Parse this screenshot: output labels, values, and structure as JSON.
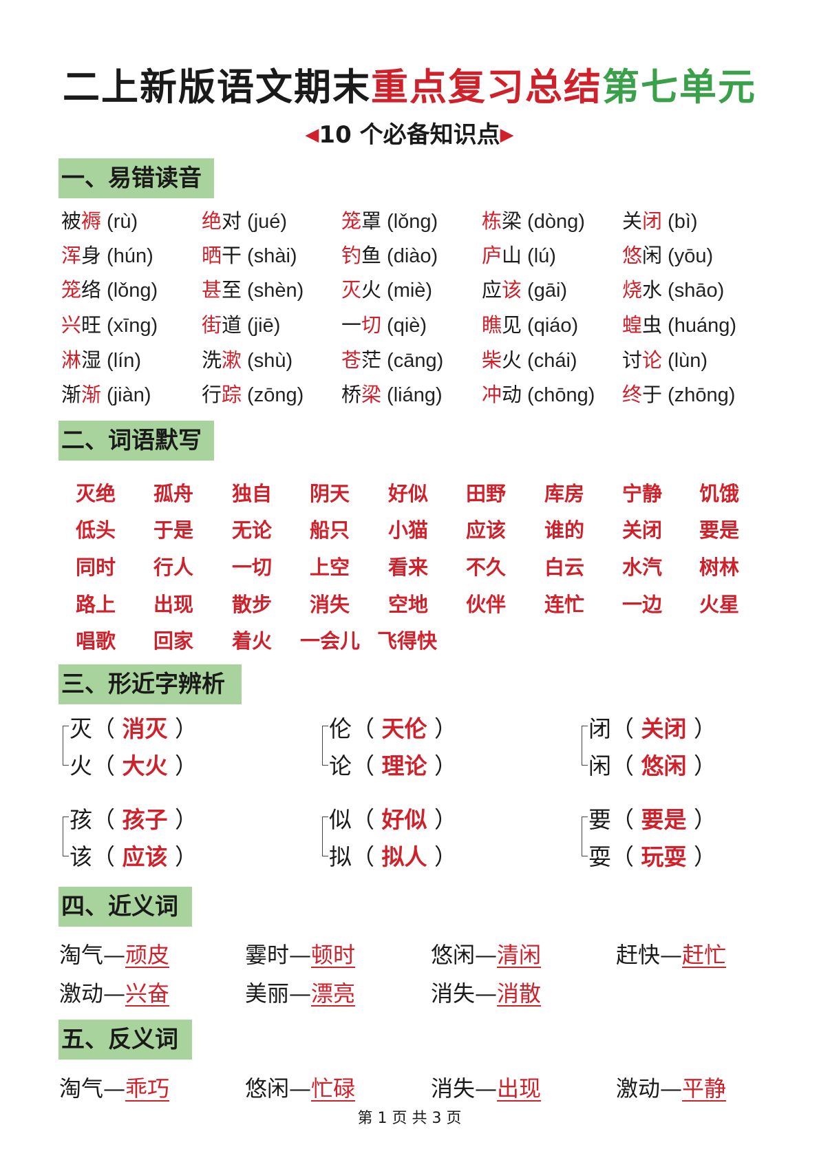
{
  "title": {
    "black": "二上新版语文期末",
    "red": "重点复习总结",
    "green": "第七单元"
  },
  "subtitle": "10 个必备知识点",
  "colors": {
    "red": "#d0202a",
    "green": "#3aa14a",
    "section_bg": "#a9d39c"
  },
  "sections": [
    {
      "heading": "一、易错读音"
    },
    {
      "heading": "二、词语默写"
    },
    {
      "heading": "三、形近字辨析"
    },
    {
      "heading": "四、近义词"
    },
    {
      "heading": "五、反义词"
    }
  ],
  "pinyin": [
    {
      "c1": "被",
      "c2": "褥",
      "red": 2,
      "py": "(rù)"
    },
    {
      "c1": "绝",
      "c2": "对",
      "red": 1,
      "py": "(jué)"
    },
    {
      "c1": "笼",
      "c2": "罩",
      "red": 1,
      "py": "(lǒng)"
    },
    {
      "c1": "栋",
      "c2": "梁",
      "red": 1,
      "py": "(dòng)"
    },
    {
      "c1": "关",
      "c2": "闭",
      "red": 2,
      "py": "(bì)"
    },
    {
      "c1": "浑",
      "c2": "身",
      "red": 1,
      "py": "(hún)"
    },
    {
      "c1": "晒",
      "c2": "干",
      "red": 1,
      "py": "(shài)"
    },
    {
      "c1": "钓",
      "c2": "鱼",
      "red": 1,
      "py": "(diào)"
    },
    {
      "c1": "庐",
      "c2": "山",
      "red": 1,
      "py": "(lú)"
    },
    {
      "c1": "悠",
      "c2": "闲",
      "red": 1,
      "py": "(yōu)"
    },
    {
      "c1": "笼",
      "c2": "络",
      "red": 1,
      "py": "(lǒng)"
    },
    {
      "c1": "甚",
      "c2": "至",
      "red": 1,
      "py": "(shèn)"
    },
    {
      "c1": "灭",
      "c2": "火",
      "red": 1,
      "py": "(miè)"
    },
    {
      "c1": "应",
      "c2": "该",
      "red": 2,
      "py": "(gāi)"
    },
    {
      "c1": "烧",
      "c2": "水",
      "red": 1,
      "py": "(shāo)"
    },
    {
      "c1": "兴",
      "c2": "旺",
      "red": 1,
      "py": "(xīng)"
    },
    {
      "c1": "街",
      "c2": "道",
      "red": 1,
      "py": "(jiē)"
    },
    {
      "c1": "一",
      "c2": "切",
      "red": 2,
      "py": "(qiè)"
    },
    {
      "c1": "瞧",
      "c2": "见",
      "red": 1,
      "py": "(qiáo)"
    },
    {
      "c1": "蝗",
      "c2": "虫",
      "red": 1,
      "py": "(huáng)"
    },
    {
      "c1": "淋",
      "c2": "湿",
      "red": 1,
      "py": "(lín)"
    },
    {
      "c1": "洗",
      "c2": "漱",
      "red": 2,
      "py": "(shù)"
    },
    {
      "c1": "苍",
      "c2": "茫",
      "red": 1,
      "py": "(cāng)"
    },
    {
      "c1": "柴",
      "c2": "火",
      "red": 1,
      "py": "(chái)"
    },
    {
      "c1": "讨",
      "c2": "论",
      "red": 2,
      "py": "(lùn)"
    },
    {
      "c1": "渐",
      "c2": "渐",
      "red": 2,
      "py": "(jiàn)"
    },
    {
      "c1": "行",
      "c2": "踪",
      "red": 2,
      "py": "(zōng)"
    },
    {
      "c1": "桥",
      "c2": "梁",
      "red": 2,
      "py": "(liáng)"
    },
    {
      "c1": "冲",
      "c2": "动",
      "red": 1,
      "py": "(chōng)"
    },
    {
      "c1": "终",
      "c2": "于",
      "red": 1,
      "py": "(zhōng)"
    }
  ],
  "words": [
    "灭绝",
    "孤舟",
    "独自",
    "阴天",
    "好似",
    "田野",
    "库房",
    "宁静",
    "饥饿",
    "低头",
    "于是",
    "无论",
    "船只",
    "小猫",
    "应该",
    "谁的",
    "关闭",
    "要是",
    "同时",
    "行人",
    "一切",
    "上空",
    "看来",
    "不久",
    "白云",
    "水汽",
    "树林",
    "路上",
    "出现",
    "散步",
    "消失",
    "空地",
    "伙伴",
    "连忙",
    "一边",
    "火星",
    "唱歌",
    "回家",
    "着火",
    "一会儿",
    "飞得快"
  ],
  "similar": [
    [
      {
        "ch": "灭",
        "word": "消灭"
      },
      {
        "ch": "火",
        "word": "大火"
      }
    ],
    [
      {
        "ch": "伦",
        "word": "天伦"
      },
      {
        "ch": "论",
        "word": "理论"
      }
    ],
    [
      {
        "ch": "闭",
        "word": "关闭"
      },
      {
        "ch": "闲",
        "word": "悠闲"
      }
    ],
    [
      {
        "ch": "孩",
        "word": "孩子"
      },
      {
        "ch": "该",
        "word": "应该"
      }
    ],
    [
      {
        "ch": "似",
        "word": "好似"
      },
      {
        "ch": "拟",
        "word": "拟人"
      }
    ],
    [
      {
        "ch": "要",
        "word": "要是"
      },
      {
        "ch": "耍",
        "word": "玩耍"
      }
    ]
  ],
  "synonyms": [
    {
      "a": "淘气—",
      "b": "顽皮"
    },
    {
      "a": "霎时—",
      "b": "顿时"
    },
    {
      "a": "悠闲—",
      "b": "清闲"
    },
    {
      "a": "赶快—",
      "b": "赶忙"
    },
    {
      "a": "激动—",
      "b": "兴奋"
    },
    {
      "a": "美丽—",
      "b": "漂亮"
    },
    {
      "a": "消失—",
      "b": "消散"
    }
  ],
  "antonyms": [
    {
      "a": "淘气—",
      "b": "乖巧"
    },
    {
      "a": "悠闲—",
      "b": "忙碌"
    },
    {
      "a": "消失—",
      "b": "出现"
    },
    {
      "a": "激动—",
      "b": "平静"
    }
  ],
  "footer": "第 1 页  共 3 页"
}
